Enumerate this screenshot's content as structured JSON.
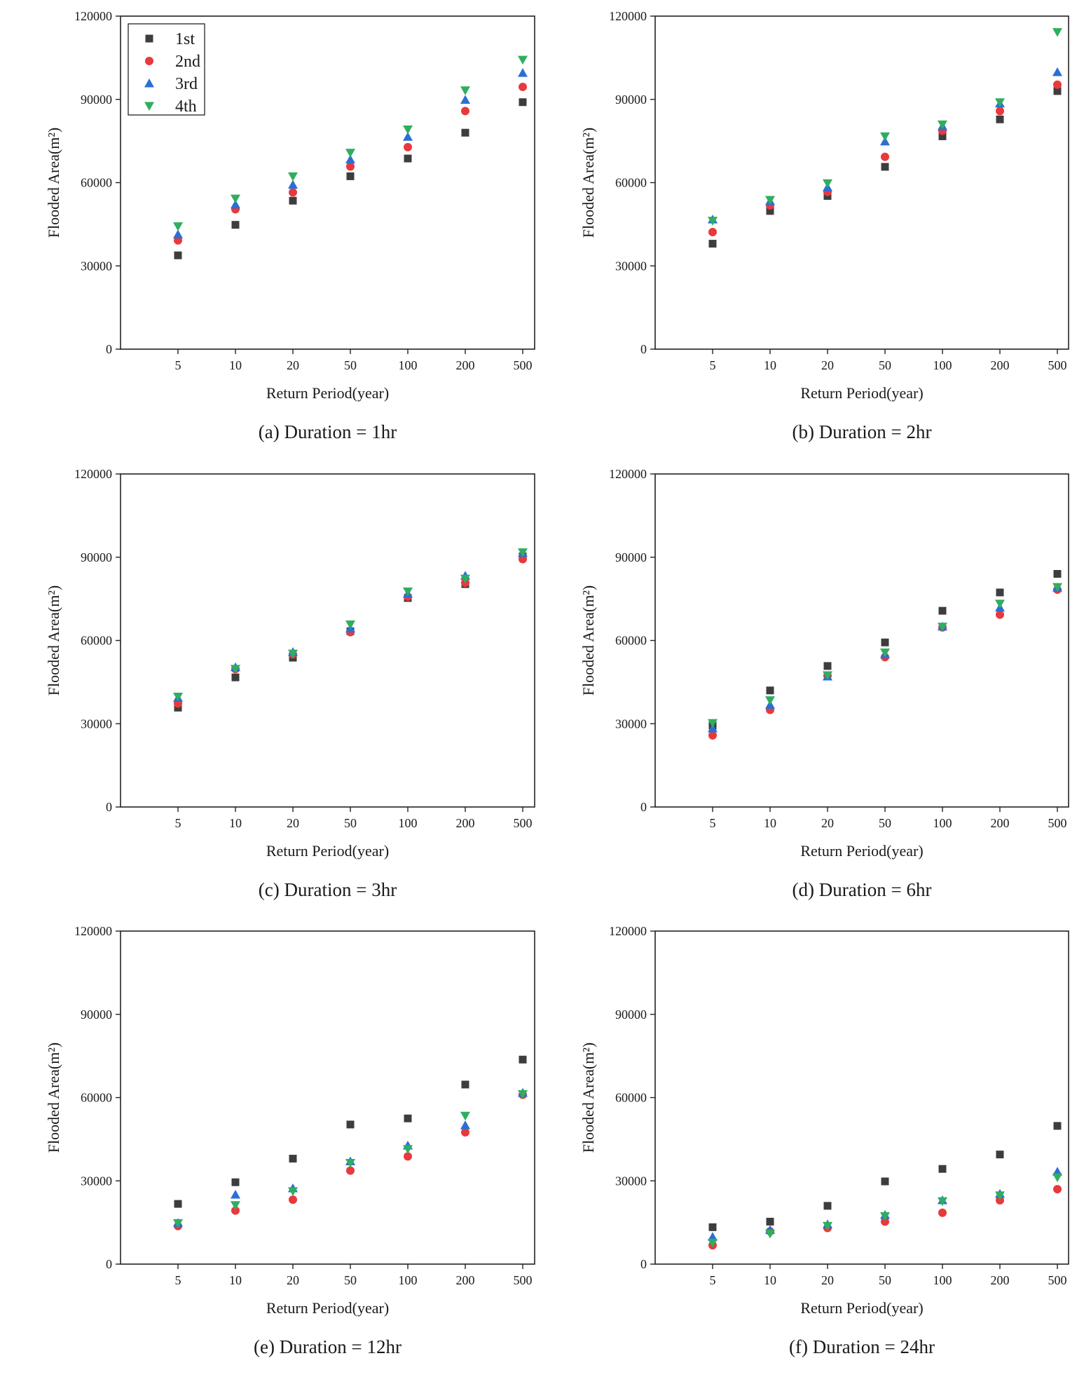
{
  "figure": {
    "colors": {
      "1st": "#3d3d3d",
      "2nd": "#e8393c",
      "3rd": "#2a6fd6",
      "4th": "#2fae5f",
      "axis": "#222222"
    },
    "legend": {
      "placement": "top-left of panel (a)",
      "entries": [
        "1st",
        "2nd",
        "3rd",
        "4th"
      ]
    }
  },
  "chart_data": [
    {
      "id": "a",
      "type": "scatter",
      "caption": "(a) Duration = 1hr",
      "xlabel": "Return Period(year)",
      "ylabel": "Flooded Area(m²)",
      "categories": [
        "5",
        "10",
        "20",
        "50",
        "100",
        "200",
        "500"
      ],
      "ylim": [
        0,
        120000
      ],
      "yticks": [
        "0",
        "30000",
        "60000",
        "90000",
        "120000"
      ],
      "series": [
        {
          "name": "1st",
          "values": [
            33800,
            44800,
            53500,
            62300,
            68700,
            78000,
            89000
          ]
        },
        {
          "name": "2nd",
          "values": [
            39200,
            50400,
            56500,
            65800,
            72800,
            85800,
            94500
          ]
        },
        {
          "name": "3rd",
          "values": [
            41300,
            52100,
            59200,
            68300,
            76500,
            89800,
            99500
          ]
        },
        {
          "name": "4th",
          "values": [
            44300,
            54300,
            62300,
            70800,
            79200,
            93300,
            104300
          ]
        }
      ]
    },
    {
      "id": "b",
      "type": "scatter",
      "caption": "(b) Duration = 2hr",
      "xlabel": "Return Period(year)",
      "ylabel": "Flooded Area(m²)",
      "categories": [
        "5",
        "10",
        "20",
        "50",
        "100",
        "200",
        "500"
      ],
      "ylim": [
        0,
        120000
      ],
      "yticks": [
        "0",
        "30000",
        "60000",
        "90000",
        "120000"
      ],
      "series": [
        {
          "name": "1st",
          "values": [
            38000,
            49800,
            55200,
            65700,
            76700,
            82800,
            93000
          ]
        },
        {
          "name": "2nd",
          "values": [
            42200,
            51800,
            56700,
            69300,
            78700,
            85800,
            95300
          ]
        },
        {
          "name": "3rd",
          "values": [
            46700,
            53300,
            58300,
            74800,
            80300,
            88500,
            99800
          ]
        },
        {
          "name": "4th",
          "values": [
            46300,
            53800,
            59800,
            76700,
            81000,
            89000,
            114300
          ]
        }
      ]
    },
    {
      "id": "c",
      "type": "scatter",
      "caption": "(c) Duration = 3hr",
      "xlabel": "Return Period(year)",
      "ylabel": "Flooded Area(m²)",
      "categories": [
        "5",
        "10",
        "20",
        "50",
        "100",
        "200",
        "500"
      ],
      "ylim": [
        0,
        120000
      ],
      "yticks": [
        "0",
        "30000",
        "60000",
        "90000",
        "120000"
      ],
      "series": [
        {
          "name": "1st",
          "values": [
            35800,
            46700,
            53800,
            63300,
            75300,
            80300,
            90300
          ]
        },
        {
          "name": "2nd",
          "values": [
            37300,
            49700,
            55000,
            63000,
            75800,
            80800,
            89300
          ]
        },
        {
          "name": "3rd",
          "values": [
            39300,
            50300,
            55800,
            64300,
            76800,
            83300,
            91500
          ]
        },
        {
          "name": "4th",
          "values": [
            39800,
            49800,
            55300,
            65800,
            77700,
            82300,
            91800
          ]
        }
      ]
    },
    {
      "id": "d",
      "type": "scatter",
      "caption": "(d) Duration = 6hr",
      "xlabel": "Return Period(year)",
      "ylabel": "Flooded Area(m²)",
      "categories": [
        "5",
        "10",
        "20",
        "50",
        "100",
        "200",
        "500"
      ],
      "ylim": [
        0,
        120000
      ],
      "yticks": [
        "0",
        "30000",
        "60000",
        "90000",
        "120000"
      ],
      "series": [
        {
          "name": "1st",
          "values": [
            29300,
            42000,
            50800,
            59300,
            70700,
            77300,
            84000
          ]
        },
        {
          "name": "2nd",
          "values": [
            25800,
            35000,
            47300,
            54000,
            64700,
            69300,
            78300
          ]
        },
        {
          "name": "3rd",
          "values": [
            28300,
            36800,
            47000,
            55000,
            65000,
            71800,
            79000
          ]
        },
        {
          "name": "4th",
          "values": [
            30300,
            38500,
            47500,
            55700,
            65000,
            73300,
            79300
          ]
        }
      ]
    },
    {
      "id": "e",
      "type": "scatter",
      "caption": "(e) Duration = 12hr",
      "xlabel": "Return Period(year)",
      "ylabel": "Flooded Area(m²)",
      "categories": [
        "5",
        "10",
        "20",
        "50",
        "100",
        "200",
        "500"
      ],
      "ylim": [
        0,
        120000
      ],
      "yticks": [
        "0",
        "30000",
        "60000",
        "90000",
        "120000"
      ],
      "series": [
        {
          "name": "1st",
          "values": [
            21700,
            29500,
            38000,
            50300,
            52500,
            64700,
            73700
          ]
        },
        {
          "name": "2nd",
          "values": [
            13700,
            19300,
            23200,
            33700,
            38800,
            47500,
            61000
          ]
        },
        {
          "name": "3rd",
          "values": [
            14800,
            25000,
            27300,
            37000,
            42700,
            50000,
            61700
          ]
        },
        {
          "name": "4th",
          "values": [
            14800,
            21300,
            26300,
            36500,
            41500,
            53500,
            61300
          ]
        }
      ]
    },
    {
      "id": "f",
      "type": "scatter",
      "caption": "(f) Duration = 24hr",
      "xlabel": "Return Period(year)",
      "ylabel": "Flooded Area(m²)",
      "categories": [
        "5",
        "10",
        "20",
        "50",
        "100",
        "200",
        "500"
      ],
      "ylim": [
        0,
        120000
      ],
      "yticks": [
        "0",
        "30000",
        "60000",
        "90000",
        "120000"
      ],
      "series": [
        {
          "name": "1st",
          "values": [
            13300,
            15300,
            21000,
            29800,
            34300,
            39500,
            49800
          ]
        },
        {
          "name": "2nd",
          "values": [
            6800,
            11800,
            13000,
            15300,
            18500,
            23000,
            27000
          ]
        },
        {
          "name": "3rd",
          "values": [
            9800,
            12300,
            14300,
            17700,
            23000,
            25300,
            33300
          ]
        },
        {
          "name": "4th",
          "values": [
            7700,
            11000,
            13800,
            17300,
            22700,
            24800,
            31300
          ]
        }
      ]
    }
  ]
}
